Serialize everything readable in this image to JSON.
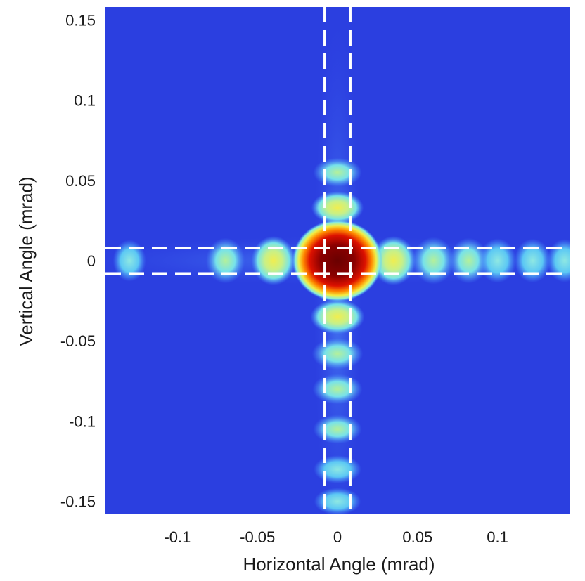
{
  "chart_data": {
    "type": "heatmap",
    "title": "",
    "xlabel": "Horizontal Angle (mrad)",
    "ylabel": "Vertical Angle (mrad)",
    "xlim": [
      -0.145,
      0.145
    ],
    "ylim": [
      -0.158,
      0.158
    ],
    "x_ticks": [
      -0.1,
      -0.05,
      0,
      0.05,
      0.1
    ],
    "x_tick_labels": [
      "-0.1",
      "-0.05",
      "0",
      "0.05",
      "0.1"
    ],
    "y_ticks": [
      0.15,
      0.1,
      0.05,
      0,
      -0.05,
      -0.1,
      -0.15
    ],
    "y_tick_labels": [
      "0.15",
      "0.1",
      "0.05",
      "0",
      "-0.05",
      "-0.1",
      "-0.15"
    ],
    "colormap": [
      "#2233dd",
      "#33aaff",
      "#99eedd",
      "#eeee44",
      "#ff8800",
      "#dd1100",
      "#770000"
    ],
    "background_color": "#2b3fe0",
    "guide_lines": {
      "vertical_x": [
        -0.008,
        0.008
      ],
      "horizontal_y": [
        0.008,
        -0.008
      ],
      "style": "dashed",
      "color": "#ffffff"
    },
    "central_peak": {
      "x": 0,
      "y": 0,
      "intensity": 1.0
    },
    "horizontal_lobes": [
      {
        "x": -0.13,
        "y": 0,
        "intensity": 0.18
      },
      {
        "x": -0.07,
        "y": 0,
        "intensity": 0.32
      },
      {
        "x": -0.04,
        "y": 0,
        "intensity": 0.45
      },
      {
        "x": 0.035,
        "y": 0,
        "intensity": 0.45
      },
      {
        "x": 0.06,
        "y": 0,
        "intensity": 0.38
      },
      {
        "x": 0.082,
        "y": 0,
        "intensity": 0.32
      },
      {
        "x": 0.1,
        "y": 0,
        "intensity": 0.28
      },
      {
        "x": 0.122,
        "y": 0,
        "intensity": 0.26
      },
      {
        "x": 0.142,
        "y": 0,
        "intensity": 0.24
      }
    ],
    "vertical_lobes": [
      {
        "x": 0,
        "y": 0.055,
        "intensity": 0.3
      },
      {
        "x": 0,
        "y": 0.033,
        "intensity": 0.42
      },
      {
        "x": 0,
        "y": -0.035,
        "intensity": 0.48
      },
      {
        "x": 0,
        "y": -0.058,
        "intensity": 0.38
      },
      {
        "x": 0,
        "y": -0.08,
        "intensity": 0.34
      },
      {
        "x": 0,
        "y": -0.105,
        "intensity": 0.3
      },
      {
        "x": 0,
        "y": -0.13,
        "intensity": 0.27
      },
      {
        "x": 0,
        "y": -0.15,
        "intensity": 0.24
      }
    ]
  }
}
